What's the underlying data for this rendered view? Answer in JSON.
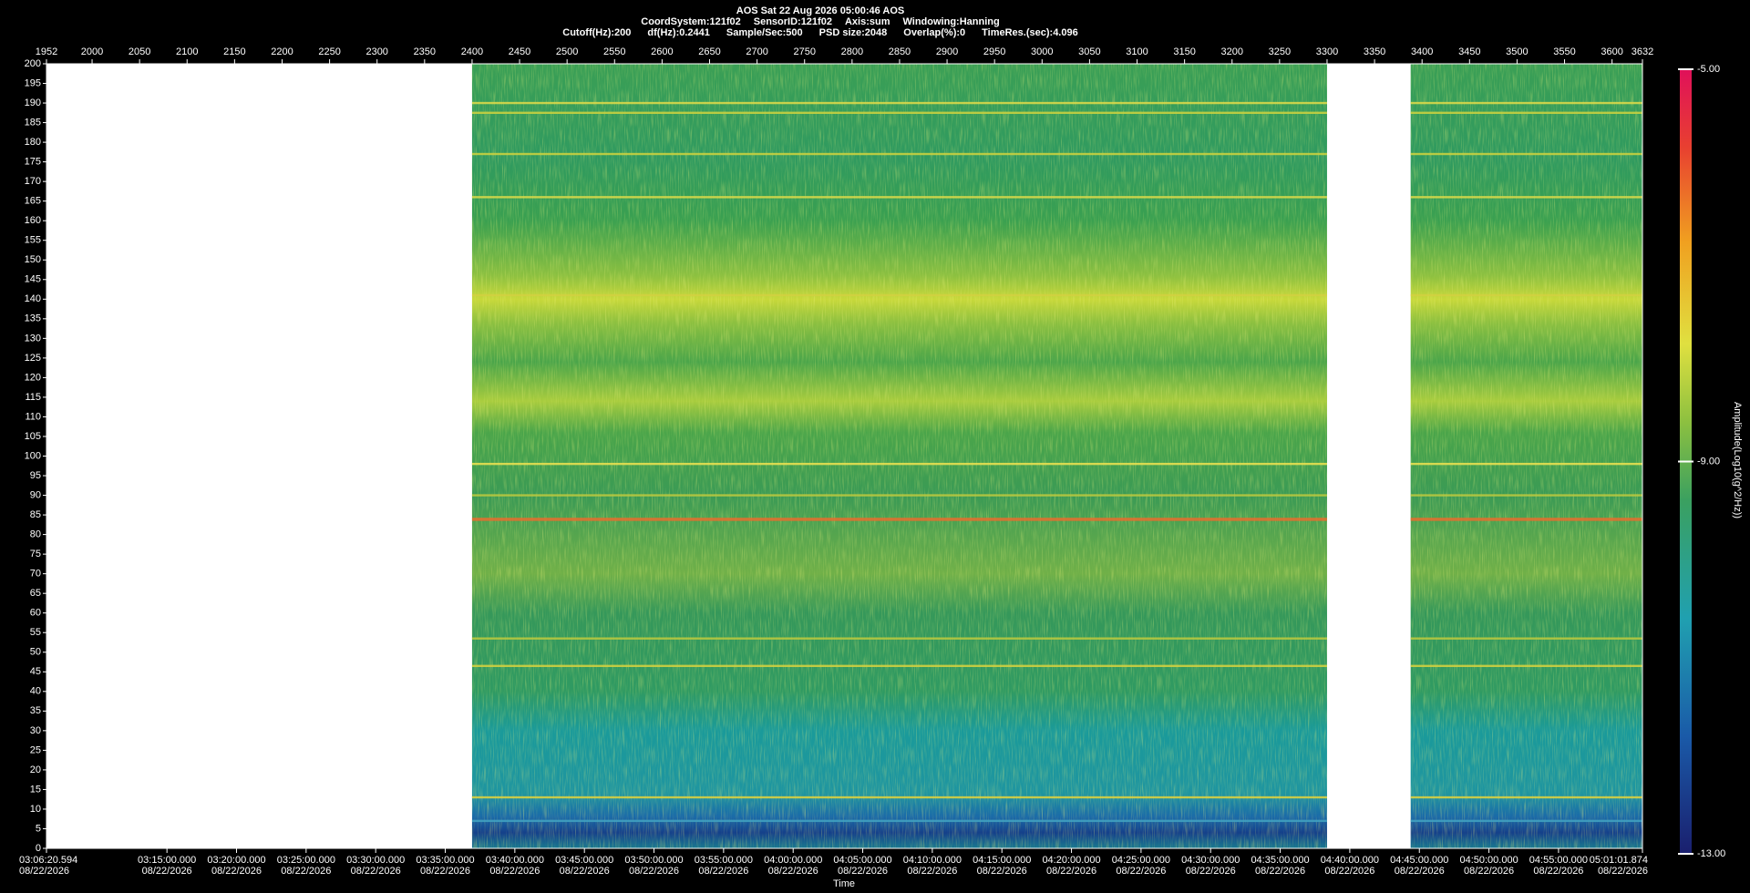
{
  "header": {
    "title": "AOS  Sat 22 Aug 2026 05:00:46  AOS",
    "line2": [
      "CoordSystem:121f02",
      "SensorID:121f02",
      "Axis:sum",
      "Windowing:Hanning"
    ],
    "line3": [
      "Cutoff(Hz):200",
      "df(Hz):0.2441",
      "Sample/Sec:500",
      "PSD size:2048",
      "Overlap(%):0",
      "TimeRes.(sec):4.096"
    ]
  },
  "chart_data": {
    "type": "spectrogram",
    "xlim": [
      1952,
      3632
    ],
    "xticks": [
      1952,
      2000,
      2050,
      2100,
      2150,
      2200,
      2250,
      2300,
      2350,
      2400,
      2450,
      2500,
      2550,
      2600,
      2650,
      2700,
      2750,
      2800,
      2850,
      2900,
      2950,
      3000,
      3050,
      3100,
      3150,
      3200,
      3250,
      3300,
      3350,
      3400,
      3450,
      3500,
      3550,
      3600,
      3632
    ],
    "x2lim": [
      11180.594,
      18061.874
    ],
    "x2ticks": [
      {
        "value": 11180.594,
        "label": "03:06:20.594"
      },
      {
        "value": 11700,
        "label": "03:15:00.000"
      },
      {
        "value": 12000,
        "label": "03:20:00.000"
      },
      {
        "value": 12300,
        "label": "03:25:00.000"
      },
      {
        "value": 12600,
        "label": "03:30:00.000"
      },
      {
        "value": 12900,
        "label": "03:35:00.000"
      },
      {
        "value": 13200,
        "label": "03:40:00.000"
      },
      {
        "value": 13500,
        "label": "03:45:00.000"
      },
      {
        "value": 13800,
        "label": "03:50:00.000"
      },
      {
        "value": 14100,
        "label": "03:55:00.000"
      },
      {
        "value": 14400,
        "label": "04:00:00.000"
      },
      {
        "value": 14700,
        "label": "04:05:00.000"
      },
      {
        "value": 15000,
        "label": "04:10:00.000"
      },
      {
        "value": 15300,
        "label": "04:15:00.000"
      },
      {
        "value": 15600,
        "label": "04:20:00.000"
      },
      {
        "value": 15900,
        "label": "04:25:00.000"
      },
      {
        "value": 16200,
        "label": "04:30:00.000"
      },
      {
        "value": 16500,
        "label": "04:35:00.000"
      },
      {
        "value": 16800,
        "label": "04:40:00.000"
      },
      {
        "value": 17100,
        "label": "04:45:00.000"
      },
      {
        "value": 17400,
        "label": "04:50:00.000"
      },
      {
        "value": 17700,
        "label": "04:55:00.000"
      },
      {
        "value": 18061.874,
        "label": "05:01:01.874"
      }
    ],
    "x2_date": "08/22/2026",
    "xlabel": "Time",
    "ylim": [
      0,
      200
    ],
    "yticks": [
      0,
      5,
      10,
      15,
      20,
      25,
      30,
      35,
      40,
      45,
      50,
      55,
      60,
      65,
      70,
      75,
      80,
      85,
      90,
      95,
      100,
      105,
      110,
      115,
      120,
      125,
      130,
      135,
      140,
      145,
      150,
      155,
      160,
      165,
      170,
      175,
      180,
      185,
      190,
      195,
      200
    ],
    "segments": [
      {
        "start": 2400,
        "end": 3300
      },
      {
        "start": 3388,
        "end": 3632
      }
    ],
    "spectral_lines": [
      {
        "freq": 190,
        "color": "#d8d84a"
      },
      {
        "freq": 187.5,
        "color": "#c8d040"
      },
      {
        "freq": 177,
        "color": "#c8d040"
      },
      {
        "freq": 166,
        "color": "#d8d84a"
      },
      {
        "freq": 141,
        "color": "#d0d040"
      },
      {
        "freq": 98,
        "color": "#e8e050"
      },
      {
        "freq": 90,
        "color": "#b8c840"
      },
      {
        "freq": 84,
        "color": "#e07030"
      },
      {
        "freq": 53.5,
        "color": "#b8c840"
      },
      {
        "freq": 46.5,
        "color": "#d0d040"
      },
      {
        "freq": 13,
        "color": "#d8d040"
      },
      {
        "freq": 7,
        "color": "#40a0c0"
      }
    ],
    "colorbar": {
      "label": "Amplitude(Log10(g^2/Hz))",
      "clim": [
        -13,
        -5
      ],
      "ticks": [
        {
          "value": -13,
          "label": "-13.00"
        },
        {
          "value": -9,
          "label": "-9.00"
        },
        {
          "value": -5,
          "label": "-5.00"
        }
      ]
    }
  }
}
